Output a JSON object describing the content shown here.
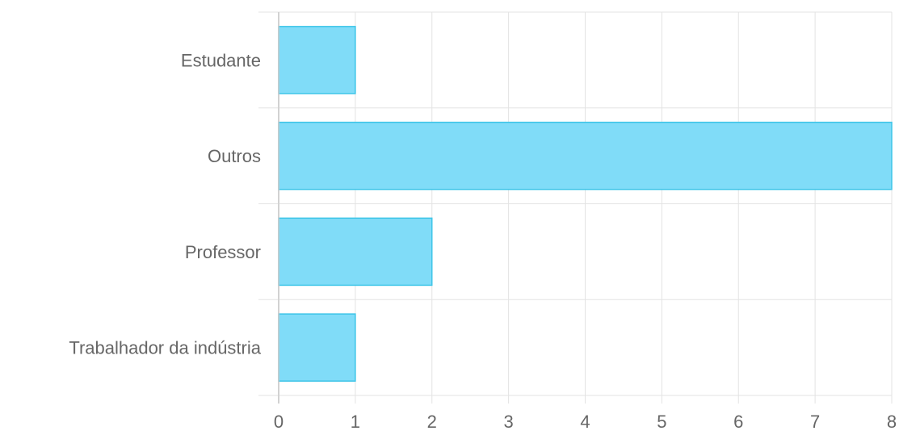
{
  "chart_data": {
    "type": "bar",
    "orientation": "horizontal",
    "categories": [
      "Estudante",
      "Outros",
      "Professor",
      "Trabalhador da indústria"
    ],
    "values": [
      1,
      8,
      2,
      1
    ],
    "xlim": [
      0,
      8
    ],
    "x_ticks": [
      "0",
      "1",
      "2",
      "3",
      "4",
      "5",
      "6",
      "7",
      "8"
    ],
    "title": "",
    "xlabel": "",
    "ylabel": "",
    "grid": true,
    "legend": "none",
    "colors": {
      "bar_fill": "#80dcf8",
      "bar_stroke": "#3ec5e8",
      "grid": "#e3e3e3",
      "axis": "#cccccc",
      "text": "#666666"
    }
  }
}
